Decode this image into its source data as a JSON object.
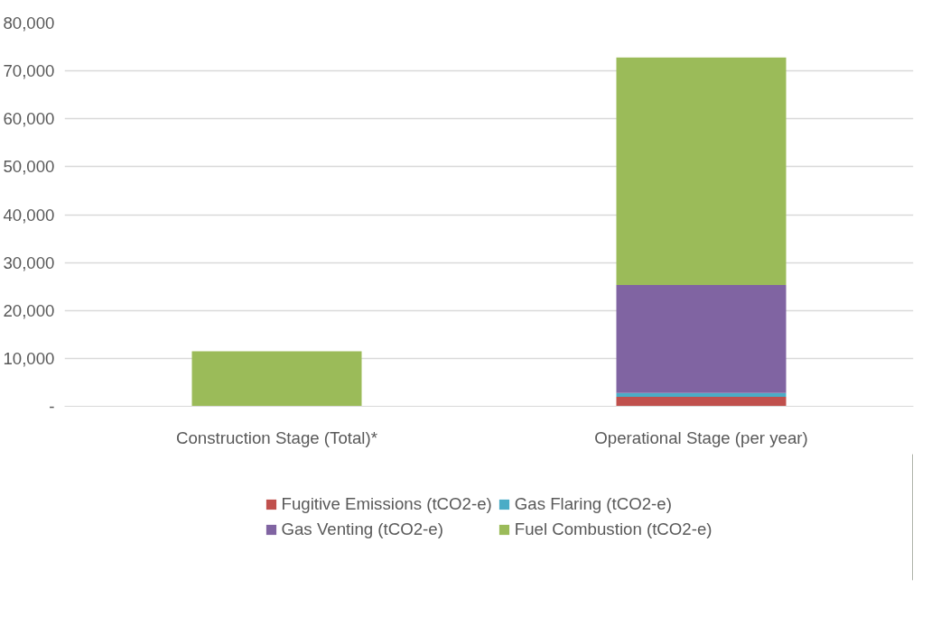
{
  "chart_data": {
    "type": "bar",
    "stacked": true,
    "categories": [
      "Construction Stage (Total)*",
      "Operational Stage (per year)"
    ],
    "series": [
      {
        "name": "Fugitive Emissions (tCO2-e)",
        "color": "#c0504d",
        "values": [
          0,
          2000
        ]
      },
      {
        "name": "Gas Flaring (tCO2-e)",
        "color": "#4bacc6",
        "values": [
          0,
          800
        ]
      },
      {
        "name": "Gas Venting (tCO2-e)",
        "color": "#8064a2",
        "values": [
          0,
          22500
        ]
      },
      {
        "name": "Fuel Combustion (tCO2-e)",
        "color": "#9bbb59",
        "values": [
          11500,
          47500
        ]
      }
    ],
    "ylim": [
      0,
      80000
    ],
    "yticks": [
      {
        "value": 0,
        "label": "-"
      },
      {
        "value": 10000,
        "label": "10,000"
      },
      {
        "value": 20000,
        "label": "20,000"
      },
      {
        "value": 30000,
        "label": "30,000"
      },
      {
        "value": 40000,
        "label": "40,000"
      },
      {
        "value": 50000,
        "label": "50,000"
      },
      {
        "value": 60000,
        "label": "60,000"
      },
      {
        "value": 70000,
        "label": "70,000"
      },
      {
        "value": 80000,
        "label": "80,000"
      }
    ],
    "grid": "y",
    "legend": "bottom"
  }
}
